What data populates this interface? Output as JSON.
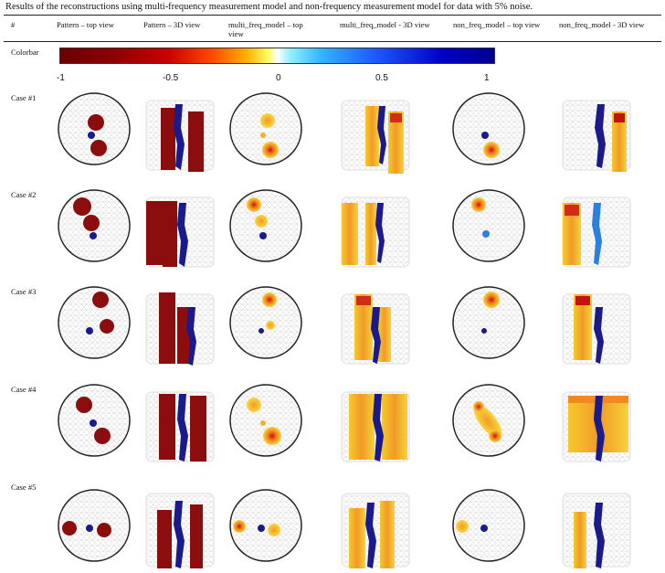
{
  "caption": "Results of the reconstructions using multi-frequency measurement model and non-frequency measurement model for data with 5% noise.",
  "headers": [
    "#",
    "Pattern – top view",
    "Pattern – 3D view",
    "multi_freq_model – top view",
    "multi_freq_model - 3D view",
    "non_freq_model – top view",
    "non_freq_model - 3D view"
  ],
  "colorbar": {
    "label": "Colorbar",
    "ticks": [
      "-1",
      "-0.5",
      "0",
      "0.5",
      "1"
    ],
    "colors": [
      "#6b0000",
      "#cc0000",
      "#ff4a00",
      "#ffb000",
      "#ffffff",
      "#33b6ff",
      "#1f5cff",
      "#00008b"
    ]
  },
  "cases": [
    "Case #1",
    "Case #2",
    "Case #3",
    "Case #4",
    "Case #5"
  ],
  "palette": {
    "dark_red": "#8b0d0d",
    "blue": "#1a1a8c",
    "light_blue": "#2a7fe0",
    "yellow": "#f7d730",
    "orange": "#f08a20",
    "red": "#d42a1a"
  }
}
